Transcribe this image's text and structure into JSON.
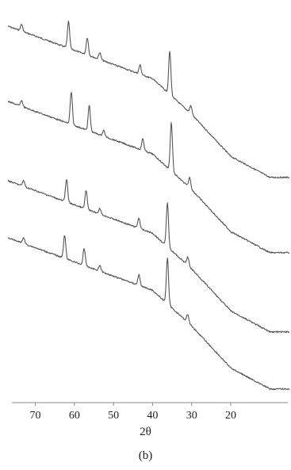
{
  "chart_data": {
    "type": "line",
    "xlabel": "2θ",
    "caption": "(b)",
    "xlim": [
      77,
      5
    ],
    "x_ticks": [
      70,
      60,
      50,
      40,
      30,
      20
    ],
    "grid": false,
    "series": [
      {
        "baseline": [
          [
            77,
            0.0
          ],
          [
            40,
            0.25
          ],
          [
            30,
            0.42
          ],
          [
            20,
            0.62
          ],
          [
            10,
            0.72
          ],
          [
            5,
            0.72
          ]
        ],
        "peaks": [
          [
            73.5,
            0.06
          ],
          [
            61.5,
            0.23
          ],
          [
            56.7,
            0.15
          ],
          [
            53.5,
            0.06
          ],
          [
            43.2,
            0.08
          ],
          [
            35.6,
            0.37
          ],
          [
            30.2,
            0.07
          ]
        ]
      },
      {
        "baseline": [
          [
            77,
            0.0
          ],
          [
            40,
            0.25
          ],
          [
            30,
            0.42
          ],
          [
            20,
            0.62
          ],
          [
            10,
            0.72
          ],
          [
            5,
            0.72
          ]
        ],
        "peaks": [
          [
            73.5,
            0.05
          ],
          [
            60.8,
            0.28
          ],
          [
            56.2,
            0.22
          ],
          [
            52.5,
            0.05
          ],
          [
            42.5,
            0.1
          ],
          [
            35.2,
            0.42
          ],
          [
            30.5,
            0.09
          ]
        ]
      },
      {
        "baseline": [
          [
            77,
            0.0
          ],
          [
            40,
            0.25
          ],
          [
            30,
            0.42
          ],
          [
            20,
            0.62
          ],
          [
            10,
            0.72
          ],
          [
            5,
            0.72
          ]
        ],
        "peaks": [
          [
            73,
            0.05
          ],
          [
            62,
            0.2
          ],
          [
            57,
            0.16
          ],
          [
            53.5,
            0.05
          ],
          [
            43.5,
            0.09
          ],
          [
            36.2,
            0.38
          ],
          [
            31,
            0.07
          ]
        ]
      },
      {
        "baseline": [
          [
            77,
            0.0
          ],
          [
            40,
            0.25
          ],
          [
            30,
            0.42
          ],
          [
            20,
            0.62
          ],
          [
            10,
            0.72
          ],
          [
            5,
            0.72
          ]
        ],
        "peaks": [
          [
            73,
            0.05
          ],
          [
            62.5,
            0.2
          ],
          [
            57.5,
            0.15
          ],
          [
            53.5,
            0.05
          ],
          [
            43.5,
            0.09
          ],
          [
            36.2,
            0.4
          ],
          [
            31,
            0.07
          ]
        ]
      }
    ]
  }
}
